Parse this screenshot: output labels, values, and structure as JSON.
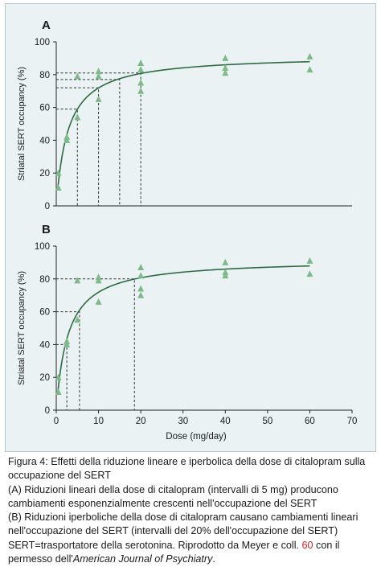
{
  "colors": {
    "panel_background": "#eaf2f3",
    "curve": "#2e6b45",
    "marker": "#7fb98a",
    "dashed": "#333333",
    "reference": "#cc2222"
  },
  "chart_data": [
    {
      "type": "scatter",
      "panel_label": "A",
      "xlabel": "",
      "ylabel": "Striatal SERT occupancy (%)",
      "xlim": [
        0,
        70
      ],
      "ylim": [
        0,
        100
      ],
      "x_ticks": [],
      "y_ticks": [
        "0",
        "20",
        "40",
        "60",
        "80",
        "100"
      ],
      "marker": "triangle",
      "points": [
        {
          "x": 0.5,
          "y": 20
        },
        {
          "x": 0.5,
          "y": 11
        },
        {
          "x": 2.5,
          "y": 42
        },
        {
          "x": 2.5,
          "y": 40
        },
        {
          "x": 5,
          "y": 79
        },
        {
          "x": 5,
          "y": 54
        },
        {
          "x": 10,
          "y": 82
        },
        {
          "x": 10,
          "y": 79
        },
        {
          "x": 10,
          "y": 65
        },
        {
          "x": 20,
          "y": 87
        },
        {
          "x": 20,
          "y": 83
        },
        {
          "x": 20,
          "y": 75
        },
        {
          "x": 20,
          "y": 70
        },
        {
          "x": 40,
          "y": 90
        },
        {
          "x": 40,
          "y": 84
        },
        {
          "x": 40,
          "y": 81
        },
        {
          "x": 60,
          "y": 91
        },
        {
          "x": 60,
          "y": 83
        }
      ],
      "fit_curve": {
        "model": "hyperbolic",
        "emax": 92,
        "ed50": 2.8
      },
      "reference_lines": [
        {
          "x": 5,
          "y": 59
        },
        {
          "x": 10,
          "y": 72
        },
        {
          "x": 15,
          "y": 77
        },
        {
          "x": 20,
          "y": 81
        }
      ],
      "grid": false
    },
    {
      "type": "scatter",
      "panel_label": "B",
      "xlabel": "Dose (mg/day)",
      "ylabel": "Striatal SERT occupancy (%)",
      "xlim": [
        0,
        70
      ],
      "ylim": [
        0,
        100
      ],
      "x_ticks": [
        "0",
        "10",
        "20",
        "30",
        "40",
        "50",
        "60",
        "70"
      ],
      "y_ticks": [
        "0",
        "20",
        "40",
        "60",
        "80",
        "100"
      ],
      "marker": "triangle",
      "points": [
        {
          "x": 0.5,
          "y": 20
        },
        {
          "x": 0.5,
          "y": 11
        },
        {
          "x": 2.5,
          "y": 42
        },
        {
          "x": 2.5,
          "y": 40
        },
        {
          "x": 5,
          "y": 79
        },
        {
          "x": 5,
          "y": 55
        },
        {
          "x": 10,
          "y": 81
        },
        {
          "x": 10,
          "y": 79
        },
        {
          "x": 10,
          "y": 66
        },
        {
          "x": 20,
          "y": 87
        },
        {
          "x": 20,
          "y": 82
        },
        {
          "x": 20,
          "y": 74
        },
        {
          "x": 20,
          "y": 70
        },
        {
          "x": 40,
          "y": 90
        },
        {
          "x": 40,
          "y": 84
        },
        {
          "x": 40,
          "y": 82
        },
        {
          "x": 60,
          "y": 91
        },
        {
          "x": 60,
          "y": 83
        }
      ],
      "fit_curve": {
        "model": "hyperbolic",
        "emax": 92,
        "ed50": 2.8
      },
      "reference_lines": [
        {
          "x": 2.5,
          "y": 40
        },
        {
          "x": 5.5,
          "y": 60
        },
        {
          "x": 18.5,
          "y": 80
        }
      ],
      "grid": false
    }
  ],
  "caption": {
    "title": "Figura 4: Effetti della riduzione lineare e iperbolica della dose di citalopram sulla occupazione del SERT",
    "part_a": "(A) Riduzioni lineari della dose di citalopram (intervalli di 5 mg) producono cambiamenti esponenzialmente crescenti nell'occupazione del SERT",
    "part_b": "(B) Riduzioni iperboliche della dose di citalopram causano cambiamenti lineari nell'occupazione del SERT (intervalli del 20% dell'occupazione del SERT)",
    "abbrev_prefix": "SERT=trasportatore della serotonina. Riprodotto da Meyer e coll.",
    "ref_number": "60",
    "abbrev_suffix": "con il permesso dell'",
    "journal": "American Journal of Psychiatry",
    "end": "."
  }
}
